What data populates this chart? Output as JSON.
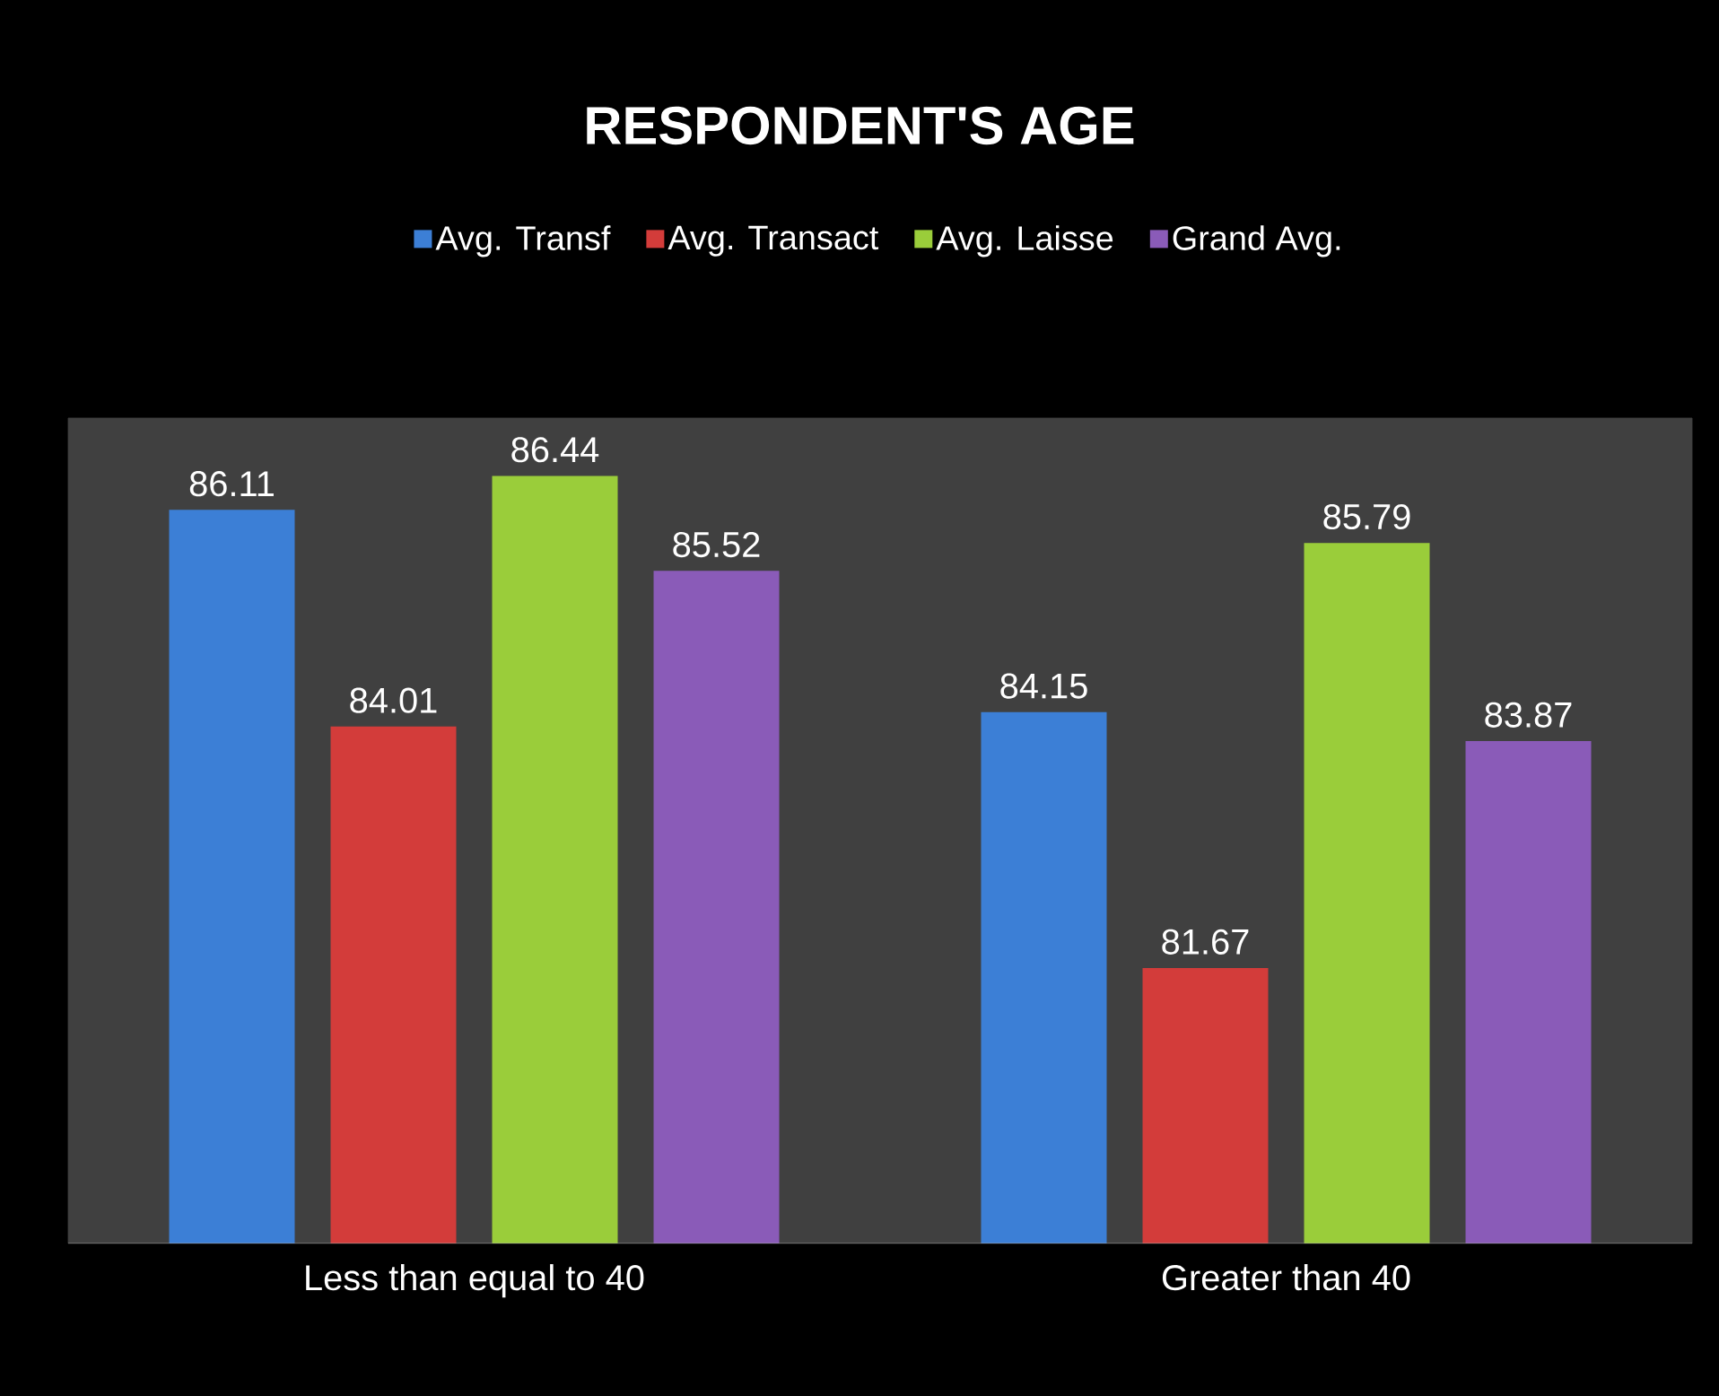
{
  "chart_data": {
    "type": "bar",
    "title": "RESPONDENT'S AGE",
    "categories": [
      "Less than equal to 40",
      "Greater than 40"
    ],
    "series": [
      {
        "name": "Avg. Transf",
        "color": "#3c7fd6",
        "values": [
          86.11,
          84.15
        ]
      },
      {
        "name": "Avg. Transact",
        "color": "#d33c3a",
        "values": [
          84.01,
          81.67
        ]
      },
      {
        "name": "Avg. Laisse",
        "color": "#9acd3a",
        "values": [
          86.44,
          85.79
        ]
      },
      {
        "name": "Grand Avg.",
        "color": "#8a5bb8",
        "values": [
          85.52,
          83.87
        ]
      }
    ],
    "ylim": [
      79,
      87
    ],
    "data_labels": true,
    "legend": "top",
    "tick_labels": "x"
  }
}
